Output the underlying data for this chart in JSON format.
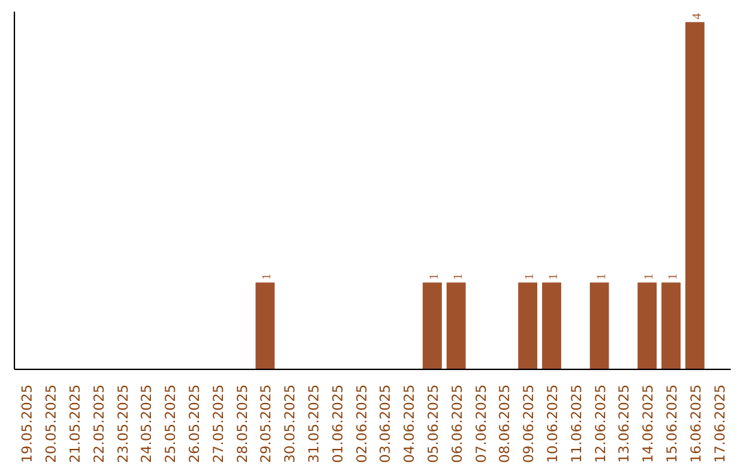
{
  "chart_data": {
    "type": "bar",
    "categories": [
      "19.05.2025",
      "20.05.2025",
      "21.05.2025",
      "22.05.2025",
      "23.05.2025",
      "24.05.2025",
      "25.05.2025",
      "26.05.2025",
      "27.05.2025",
      "28.05.2025",
      "29.05.2025",
      "30.05.2025",
      "31.05.2025",
      "01.06.2025",
      "02.06.2025",
      "03.06.2025",
      "04.06.2025",
      "05.06.2025",
      "06.06.2025",
      "07.06.2025",
      "08.06.2025",
      "09.06.2025",
      "10.06.2025",
      "11.06.2025",
      "12.06.2025",
      "13.06.2025",
      "14.06.2025",
      "15.06.2025",
      "16.06.2025",
      "17.06.2025"
    ],
    "values": [
      0,
      0,
      0,
      0,
      0,
      0,
      0,
      0,
      0,
      0,
      1,
      0,
      0,
      0,
      0,
      0,
      0,
      1,
      1,
      0,
      0,
      1,
      1,
      0,
      1,
      0,
      1,
      1,
      4,
      0
    ],
    "value_labels": [
      null,
      null,
      null,
      null,
      null,
      null,
      null,
      null,
      null,
      null,
      "1",
      null,
      null,
      null,
      null,
      null,
      null,
      "1",
      "1",
      null,
      null,
      "1",
      "1",
      null,
      "1",
      null,
      "1",
      "1",
      "4",
      null
    ],
    "color": "#a0522d",
    "grid": false
  }
}
